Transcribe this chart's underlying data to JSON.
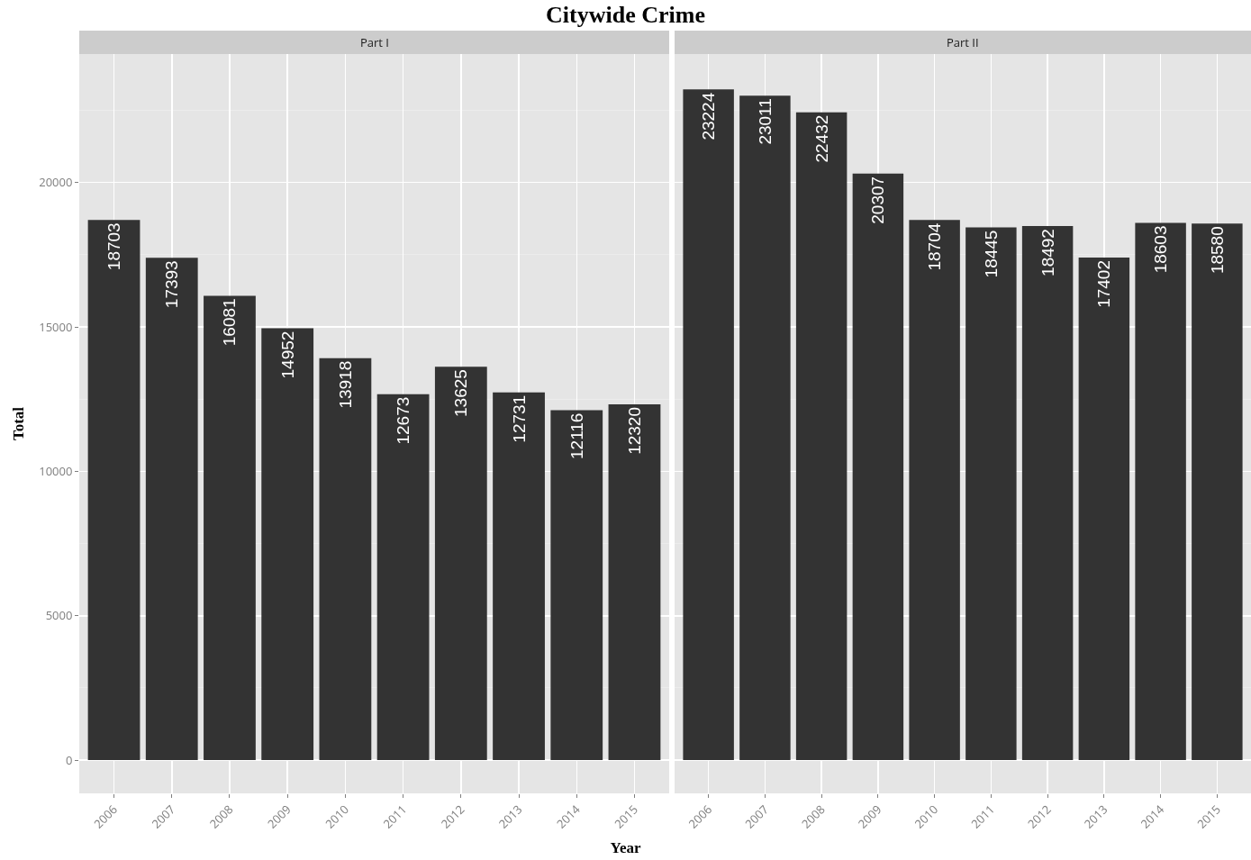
{
  "chart_data": [
    {
      "type": "bar",
      "title": "Part I",
      "annotations": [
        "Citywide Crime"
      ],
      "xlabel": "Year",
      "ylabel": "Total",
      "categories": [
        "2006",
        "2007",
        "2008",
        "2009",
        "2010",
        "2011",
        "2012",
        "2013",
        "2014",
        "2015"
      ],
      "values": [
        18703,
        17393,
        16081,
        14952,
        13918,
        12673,
        13625,
        12731,
        12116,
        12320
      ],
      "color": "#333333",
      "ylim": [
        -1150,
        24450
      ],
      "yticks": [
        0,
        5000,
        10000,
        15000,
        20000
      ],
      "grid": true,
      "data_labels": true
    },
    {
      "type": "bar",
      "title": "Part II",
      "categories": [
        "2006",
        "2007",
        "2008",
        "2009",
        "2010",
        "2011",
        "2012",
        "2013",
        "2014",
        "2015"
      ],
      "values": [
        23224,
        23011,
        22432,
        20307,
        18704,
        18445,
        18492,
        17402,
        18603,
        18580
      ],
      "color": "#333333",
      "ylim": [
        -1150,
        24450
      ],
      "yticks": [
        0,
        5000,
        10000,
        15000,
        20000
      ],
      "grid": true,
      "data_labels": true,
      "tick_labels": "x"
    }
  ]
}
